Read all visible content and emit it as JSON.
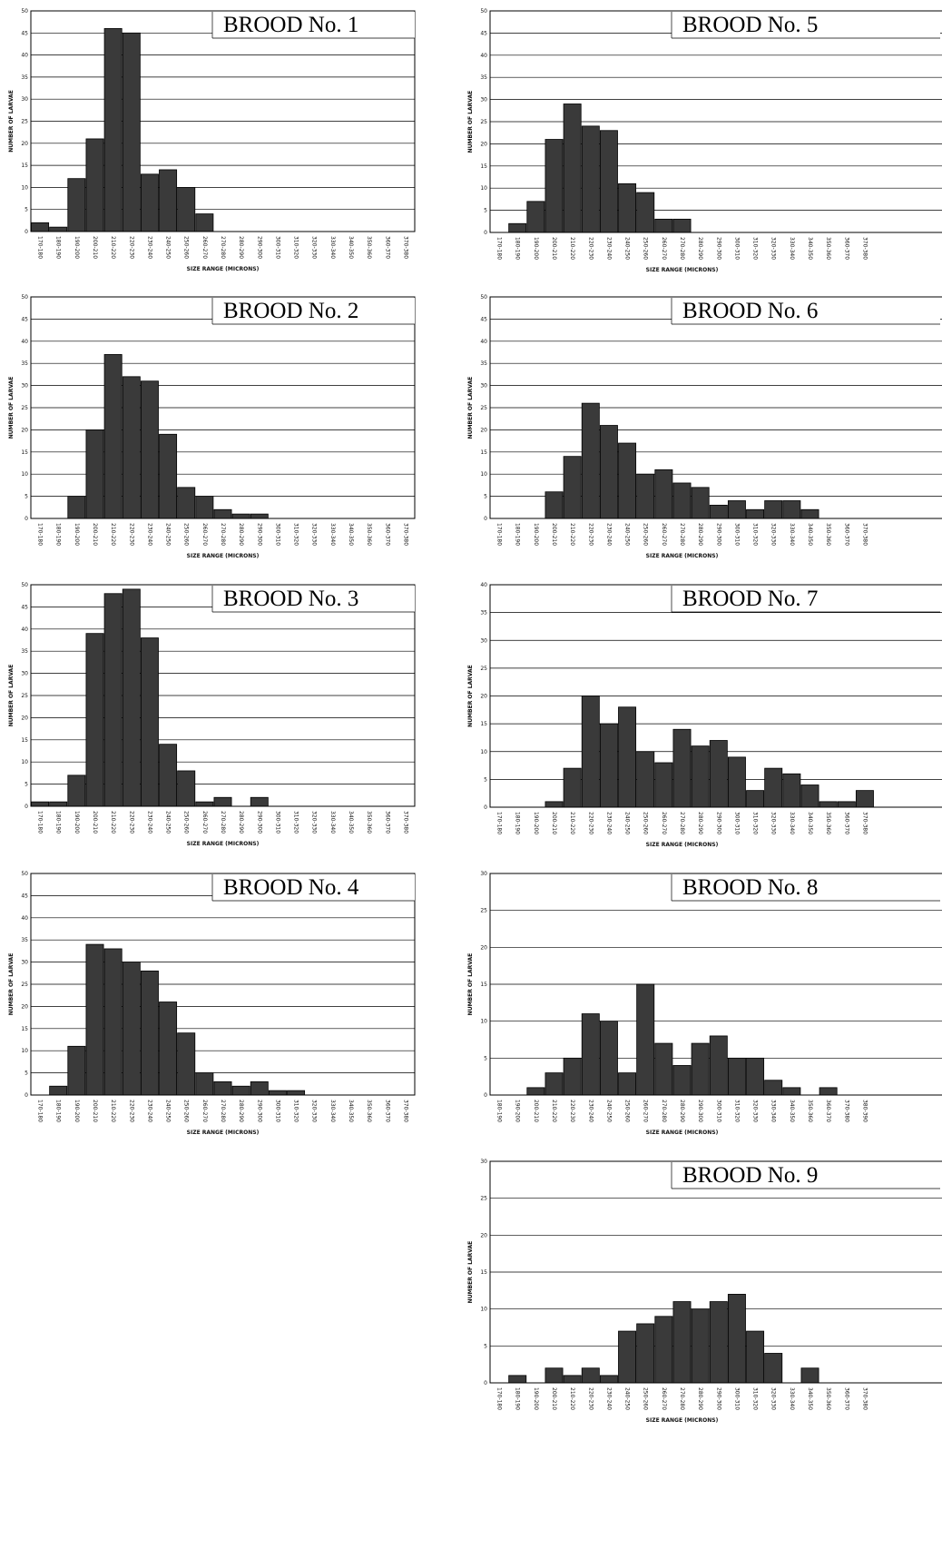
{
  "chart_data": [
    {
      "type": "bar",
      "title": "BROOD No. 1",
      "xlabel": "SIZE RANGE (MICRONS)",
      "ylabel": "NUMBER OF LARVAE",
      "ylim": [
        0,
        50
      ],
      "yticks": [
        0,
        5,
        10,
        15,
        20,
        25,
        30,
        35,
        40,
        45,
        50
      ],
      "grid": true,
      "categories": [
        "170-180",
        "180-190",
        "190-200",
        "200-210",
        "210-220",
        "220-230",
        "230-240",
        "240-250",
        "250-260",
        "260-270",
        "270-280",
        "280-290",
        "290-300",
        "300-310",
        "310-320",
        "320-330",
        "330-340",
        "340-350",
        "350-360",
        "360-370",
        "370-380"
      ],
      "values": [
        2,
        1,
        12,
        21,
        46,
        45,
        13,
        14,
        10,
        4,
        0,
        0,
        0,
        0,
        0,
        0,
        0,
        0,
        0,
        0,
        0
      ]
    },
    {
      "type": "bar",
      "title": "BROOD No. 2",
      "xlabel": "SIZE RANGE (MICRONS)",
      "ylabel": "NUMBER OF LARVAE",
      "ylim": [
        0,
        50
      ],
      "yticks": [
        0,
        5,
        10,
        15,
        20,
        25,
        30,
        35,
        40,
        45,
        50
      ],
      "grid": true,
      "categories": [
        "170-180",
        "180-190",
        "190-200",
        "200-210",
        "210-220",
        "220-230",
        "230-240",
        "240-250",
        "250-260",
        "260-270",
        "270-280",
        "280-290",
        "290-300",
        "300-310",
        "310-320",
        "320-330",
        "330-340",
        "340-350",
        "350-360",
        "360-370",
        "370-380"
      ],
      "values": [
        0,
        0,
        5,
        20,
        37,
        32,
        31,
        19,
        7,
        5,
        2,
        1,
        1,
        0,
        0,
        0,
        0,
        0,
        0,
        0,
        0
      ]
    },
    {
      "type": "bar",
      "title": "BROOD No. 3",
      "xlabel": "SIZE RANGE (MICRONS)",
      "ylabel": "NUMBER OF LARVAE",
      "ylim": [
        0,
        50
      ],
      "yticks": [
        0,
        5,
        10,
        15,
        20,
        25,
        30,
        35,
        40,
        45,
        50
      ],
      "grid": true,
      "categories": [
        "170-180",
        "180-190",
        "190-200",
        "200-210",
        "210-220",
        "220-230",
        "230-240",
        "240-250",
        "250-260",
        "260-270",
        "270-280",
        "280-290",
        "290-300",
        "300-310",
        "310-320",
        "320-330",
        "330-340",
        "340-350",
        "350-360",
        "360-370",
        "370-380"
      ],
      "values": [
        1,
        1,
        7,
        39,
        48,
        49,
        38,
        14,
        8,
        1,
        2,
        0,
        2,
        0,
        0,
        0,
        0,
        0,
        0,
        0,
        0
      ]
    },
    {
      "type": "bar",
      "title": "BROOD No. 4",
      "xlabel": "SIZE RANGE (MICRONS)",
      "ylabel": "NUMBER OF LARVAE",
      "ylim": [
        0,
        50
      ],
      "yticks": [
        0,
        5,
        10,
        15,
        20,
        25,
        30,
        35,
        40,
        45,
        50
      ],
      "grid": true,
      "categories": [
        "170-180",
        "180-190",
        "190-200",
        "200-210",
        "210-220",
        "220-230",
        "230-240",
        "240-250",
        "250-260",
        "260-270",
        "270-280",
        "280-290",
        "290-300",
        "300-310",
        "310-320",
        "320-330",
        "330-340",
        "340-350",
        "350-360",
        "360-370",
        "370-380"
      ],
      "values": [
        0,
        2,
        11,
        34,
        33,
        30,
        28,
        21,
        14,
        5,
        3,
        2,
        3,
        1,
        1,
        0,
        0,
        0,
        0,
        0,
        0
      ]
    },
    {
      "type": "bar",
      "title": "BROOD No. 5",
      "xlabel": "SIZE RANGE (MICRONS)",
      "ylabel": "NUMBER OF LARVAE",
      "ylim": [
        0,
        50
      ],
      "yticks": [
        0,
        5,
        10,
        15,
        20,
        25,
        30,
        35,
        40,
        45,
        50
      ],
      "grid": true,
      "categories": [
        "170-180",
        "180-190",
        "190-200",
        "200-210",
        "210-220",
        "220-230",
        "230-240",
        "240-250",
        "250-260",
        "260-270",
        "270-280",
        "280-290",
        "290-300",
        "300-310",
        "310-320",
        "320-330",
        "330-340",
        "340-350",
        "350-360",
        "360-370",
        "370-380"
      ],
      "values": [
        0,
        2,
        7,
        21,
        29,
        24,
        23,
        11,
        9,
        3,
        3,
        0,
        0,
        0,
        0,
        0,
        0,
        0,
        0,
        0,
        0
      ]
    },
    {
      "type": "bar",
      "title": "BROOD No. 6",
      "xlabel": "SIZE RANGE (MICRONS)",
      "ylabel": "NUMBER OF LARVAE",
      "ylim": [
        0,
        50
      ],
      "yticks": [
        0,
        5,
        10,
        15,
        20,
        25,
        30,
        35,
        40,
        45,
        50
      ],
      "grid": true,
      "categories": [
        "170-180",
        "180-190",
        "190-200",
        "200-210",
        "210-220",
        "220-230",
        "230-240",
        "240-250",
        "250-260",
        "260-270",
        "270-280",
        "280-290",
        "290-300",
        "300-310",
        "310-320",
        "320-330",
        "330-340",
        "340-350",
        "350-360",
        "360-370",
        "370-380"
      ],
      "values": [
        0,
        0,
        0,
        6,
        14,
        26,
        21,
        17,
        10,
        11,
        8,
        7,
        3,
        4,
        2,
        4,
        4,
        2,
        0,
        0,
        0
      ]
    },
    {
      "type": "bar",
      "title": "BROOD No. 7",
      "xlabel": "SIZE RANGE (MICRONS)",
      "ylabel": "NUMBER OF LARVAE",
      "ylim": [
        0,
        40
      ],
      "yticks": [
        0,
        5,
        10,
        15,
        20,
        25,
        30,
        35,
        40
      ],
      "grid": true,
      "categories": [
        "170-180",
        "180-190",
        "190-200",
        "200-210",
        "210-220",
        "220-230",
        "230-240",
        "240-250",
        "250-260",
        "260-270",
        "270-280",
        "280-290",
        "290-300",
        "300-310",
        "310-320",
        "320-330",
        "330-340",
        "340-350",
        "350-360",
        "360-370",
        "370-380"
      ],
      "values": [
        0,
        0,
        0,
        1,
        7,
        20,
        15,
        18,
        10,
        8,
        14,
        11,
        12,
        9,
        3,
        7,
        6,
        4,
        1,
        1,
        3
      ]
    },
    {
      "type": "bar",
      "title": "BROOD No. 8",
      "xlabel": "SIZE RANGE (MICRONS)",
      "ylabel": "NUMBER OF LARVAE",
      "ylim": [
        0,
        30
      ],
      "yticks": [
        0,
        5,
        10,
        15,
        20,
        25,
        30
      ],
      "grid": true,
      "categories": [
        "180-190",
        "190-200",
        "200-210",
        "210-220",
        "220-230",
        "230-240",
        "240-250",
        "250-260",
        "260-270",
        "270-280",
        "280-290",
        "290-300",
        "300-310",
        "310-320",
        "320-330",
        "330-340",
        "340-350",
        "350-360",
        "360-370",
        "370-380",
        "380-390"
      ],
      "values": [
        0,
        0,
        1,
        3,
        5,
        11,
        10,
        3,
        15,
        7,
        4,
        7,
        8,
        5,
        5,
        2,
        1,
        0,
        1,
        0,
        0
      ]
    },
    {
      "type": "bar",
      "title": "BROOD No. 9",
      "xlabel": "SIZE RANGE (MICRONS)",
      "ylabel": "NUMBER OF LARVAE",
      "ylim": [
        0,
        30
      ],
      "yticks": [
        0,
        5,
        10,
        15,
        20,
        25,
        30
      ],
      "grid": true,
      "categories": [
        "170-180",
        "180-190",
        "190-200",
        "200-210",
        "210-220",
        "220-230",
        "230-240",
        "240-250",
        "250-260",
        "260-270",
        "270-280",
        "280-290",
        "290-300",
        "300-310",
        "310-320",
        "320-330",
        "330-340",
        "340-350",
        "350-360",
        "360-370",
        "370-380"
      ],
      "values": [
        0,
        1,
        0,
        2,
        1,
        2,
        1,
        7,
        8,
        9,
        11,
        10,
        11,
        12,
        7,
        4,
        0,
        2,
        0,
        0,
        0
      ]
    }
  ]
}
